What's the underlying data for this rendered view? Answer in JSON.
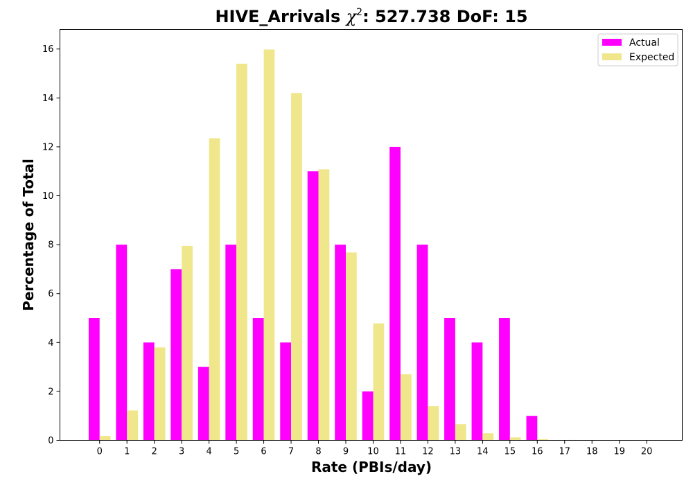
{
  "chart_data": {
    "type": "bar",
    "title_prefix": "HIVE_Arrivals ",
    "title_symbol": "χ",
    "title_superscript": "2",
    "title_suffix": ": 527.738 DoF: 15",
    "xlabel": "Rate (PBIs/day)",
    "ylabel": "Percentage of Total",
    "categories": [
      "0",
      "1",
      "2",
      "3",
      "4",
      "5",
      "6",
      "7",
      "8",
      "9",
      "10",
      "11",
      "12",
      "13",
      "14",
      "15",
      "16",
      "17",
      "18",
      "19",
      "20"
    ],
    "series": [
      {
        "name": "Actual",
        "color": "#ff00ff",
        "values": [
          5,
          8,
          4,
          7,
          3,
          8,
          5,
          4,
          11,
          8,
          2,
          12,
          8,
          5,
          4,
          5,
          1,
          0,
          0,
          0,
          0
        ]
      },
      {
        "name": "Expected",
        "color": "#f0e68c",
        "values": [
          0.18,
          1.22,
          3.8,
          7.95,
          12.35,
          15.4,
          15.98,
          14.2,
          11.08,
          7.68,
          4.78,
          2.7,
          1.4,
          0.66,
          0.29,
          0.12,
          0.045,
          0.016,
          0.005,
          0.002,
          0.0005
        ]
      }
    ],
    "ylim": [
      0,
      16.8
    ],
    "yticks": [
      0,
      2,
      4,
      6,
      8,
      10,
      12,
      14,
      16
    ],
    "xlim": [
      -1.45,
      21.3
    ],
    "legend_position": "top-right",
    "grid": false
  }
}
